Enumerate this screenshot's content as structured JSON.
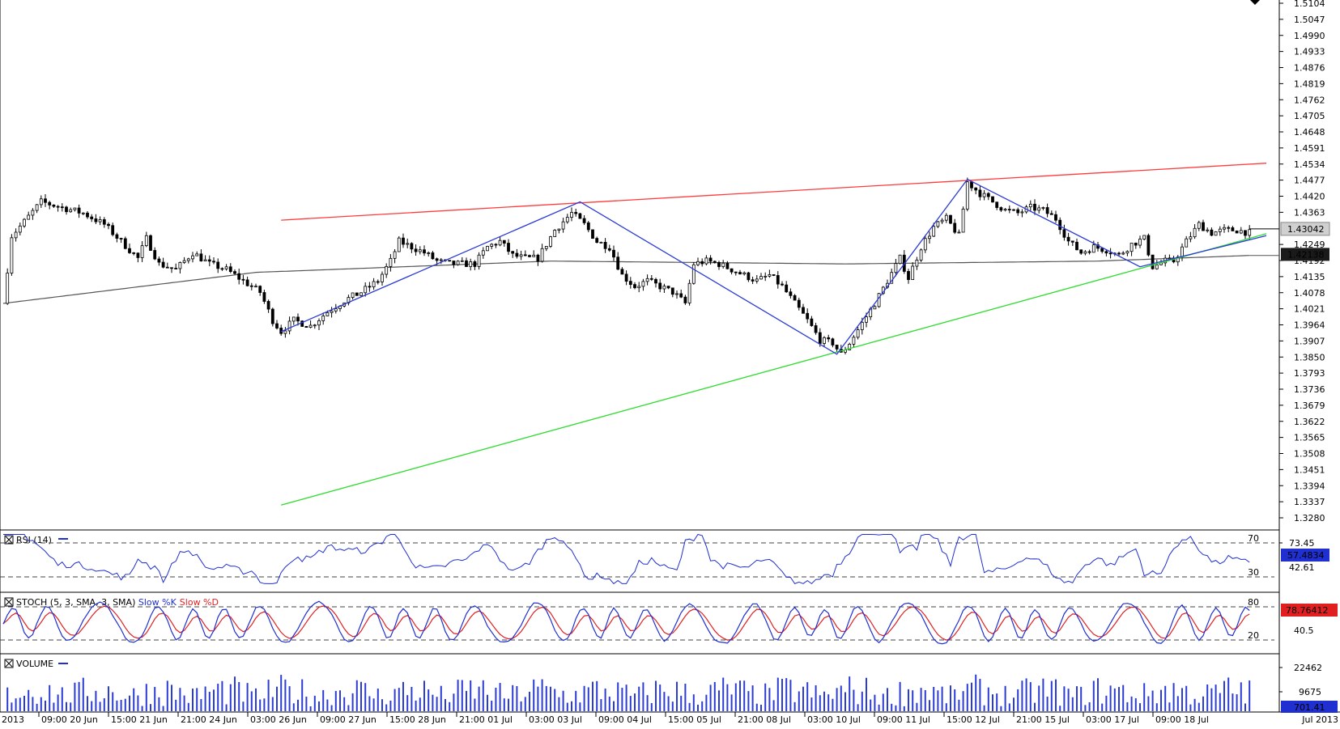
{
  "colors": {
    "background": "#ffffff",
    "candle": "#000000",
    "ma": "#555555",
    "resistance": "#ff3b3b",
    "support": "#2fdc2f",
    "zigzag": "#2b3bd6",
    "rsi": "#1f2fd0",
    "stoch_k": "#1f2fd0",
    "stoch_d": "#e02020",
    "volume": "#2b3bd6",
    "badge_blue": "#1f2fd0",
    "badge_red": "#e02020",
    "badge_dark": "#1a1a1a",
    "badge_grey": "#d0d0d0"
  },
  "price_axis": {
    "ticks": [
      "1.5104",
      "1.5047",
      "1.4990",
      "1.4933",
      "1.4876",
      "1.4819",
      "1.4762",
      "1.4705",
      "1.4648",
      "1.4591",
      "1.4534",
      "1.4477",
      "1.4420",
      "1.4363",
      "1.4249",
      "1.4192",
      "1.4135",
      "1.4078",
      "1.4021",
      "1.3964",
      "1.3907",
      "1.3850",
      "1.3793",
      "1.3736",
      "1.3679",
      "1.3622",
      "1.3565",
      "1.3508",
      "1.3451",
      "1.3394",
      "1.3337",
      "1.3280"
    ],
    "badge_last": "1.43042",
    "badge_ma": "1.42138"
  },
  "time_axis": {
    "left_label": "2013",
    "right_label": "Jul 2013",
    "ticks": [
      "09:00 20 Jun",
      "15:00 21 Jun",
      "21:00 24 Jun",
      "03:00 26 Jun",
      "09:00 27 Jun",
      "15:00 28 Jun",
      "21:00 01 Jul",
      "03:00 03 Jul",
      "09:00 04 Jul",
      "15:00 05 Jul",
      "21:00 08 Jul",
      "03:00 10 Jul",
      "09:00 11 Jul",
      "15:00 12 Jul",
      "21:00 15 Jul",
      "03:00 17 Jul",
      "09:00 18 Jul"
    ]
  },
  "rsi": {
    "title": "RSI (14)",
    "levels": [
      "70",
      "30"
    ],
    "scale": [
      "73.45",
      "42.61"
    ],
    "badge": "57.4834"
  },
  "stoch": {
    "title_prefix": "STOCH (5, 3, SMA, 3, SMA) ",
    "k_label": "Slow %K",
    "d_label": "Slow %D",
    "levels": [
      "80",
      "20"
    ],
    "scale": [
      "40.5"
    ],
    "badge": "78.76412"
  },
  "volume": {
    "title": "VOLUME",
    "scale": [
      "22462",
      "9675"
    ],
    "badge": "701.41"
  },
  "chart_data": {
    "type": "candlestick",
    "ylim": [
      1.328,
      1.5104
    ],
    "x": [
      "09:00 20 Jun",
      "15:00 21 Jun",
      "21:00 24 Jun",
      "03:00 26 Jun",
      "09:00 27 Jun",
      "15:00 28 Jun",
      "21:00 01 Jul",
      "03:00 03 Jul",
      "09:00 04 Jul",
      "15:00 05 Jul",
      "21:00 08 Jul",
      "03:00 10 Jul",
      "09:00 11 Jul",
      "15:00 12 Jul",
      "21:00 15 Jul",
      "03:00 17 Jul",
      "09:00 18 Jul"
    ],
    "price_path": [
      [
        0,
        1.404
      ],
      [
        2,
        1.428
      ],
      [
        5,
        1.433
      ],
      [
        9,
        1.44
      ],
      [
        14,
        1.438
      ],
      [
        19,
        1.436
      ],
      [
        24,
        1.432
      ],
      [
        28,
        1.426
      ],
      [
        32,
        1.42
      ],
      [
        34,
        1.427
      ],
      [
        37,
        1.418
      ],
      [
        41,
        1.416
      ],
      [
        45,
        1.422
      ],
      [
        49,
        1.418
      ],
      [
        53,
        1.416
      ],
      [
        57,
        1.412
      ],
      [
        61,
        1.408
      ],
      [
        64,
        1.398
      ],
      [
        66,
        1.394
      ],
      [
        69,
        1.398
      ],
      [
        73,
        1.396
      ],
      [
        77,
        1.401
      ],
      [
        81,
        1.405
      ],
      [
        85,
        1.408
      ],
      [
        89,
        1.412
      ],
      [
        92,
        1.419
      ],
      [
        94,
        1.426
      ],
      [
        97,
        1.424
      ],
      [
        100,
        1.422
      ],
      [
        103,
        1.419
      ],
      [
        106,
        1.418
      ],
      [
        109,
        1.418
      ],
      [
        112,
        1.418
      ],
      [
        115,
        1.424
      ],
      [
        118,
        1.426
      ],
      [
        121,
        1.421
      ],
      [
        124,
        1.42
      ],
      [
        127,
        1.42
      ],
      [
        131,
        1.43
      ],
      [
        135,
        1.436
      ],
      [
        138,
        1.432
      ],
      [
        141,
        1.426
      ],
      [
        144,
        1.424
      ],
      [
        147,
        1.414
      ],
      [
        150,
        1.41
      ],
      [
        153,
        1.412
      ],
      [
        156,
        1.41
      ],
      [
        159,
        1.408
      ],
      [
        162,
        1.404
      ],
      [
        164,
        1.418
      ],
      [
        167,
        1.419
      ],
      [
        170,
        1.418
      ],
      [
        173,
        1.416
      ],
      [
        176,
        1.414
      ],
      [
        179,
        1.412
      ],
      [
        182,
        1.414
      ],
      [
        185,
        1.41
      ],
      [
        188,
        1.404
      ],
      [
        191,
        1.398
      ],
      [
        194,
        1.391
      ],
      [
        197,
        1.39
      ],
      [
        199,
        1.386
      ],
      [
        201,
        1.39
      ],
      [
        204,
        1.397
      ],
      [
        207,
        1.404
      ],
      [
        210,
        1.412
      ],
      [
        213,
        1.42
      ],
      [
        215,
        1.413
      ],
      [
        218,
        1.424
      ],
      [
        221,
        1.431
      ],
      [
        224,
        1.434
      ],
      [
        227,
        1.428
      ],
      [
        229,
        1.447
      ],
      [
        232,
        1.443
      ],
      [
        235,
        1.44
      ],
      [
        238,
        1.437
      ],
      [
        241,
        1.436
      ],
      [
        244,
        1.438
      ],
      [
        247,
        1.437
      ],
      [
        250,
        1.434
      ],
      [
        253,
        1.426
      ],
      [
        256,
        1.422
      ],
      [
        259,
        1.424
      ],
      [
        262,
        1.423
      ],
      [
        265,
        1.421
      ],
      [
        268,
        1.425
      ],
      [
        271,
        1.427
      ],
      [
        273,
        1.417
      ],
      [
        276,
        1.419
      ],
      [
        278,
        1.419
      ],
      [
        281,
        1.426
      ],
      [
        284,
        1.432
      ],
      [
        287,
        1.429
      ],
      [
        290,
        1.43
      ],
      [
        293,
        1.43
      ],
      [
        296,
        1.429
      ]
    ],
    "moving_average_path": [
      [
        0,
        1.404
      ],
      [
        60,
        1.415
      ],
      [
        130,
        1.419
      ],
      [
        200,
        1.418
      ],
      [
        260,
        1.419
      ],
      [
        296,
        1.421
      ]
    ],
    "resistance_line": [
      [
        66,
        1.4335
      ],
      [
        300,
        1.4537
      ]
    ],
    "support_line": [
      [
        66,
        1.3325
      ],
      [
        300,
        1.4287
      ]
    ],
    "zigzag": [
      [
        66,
        1.394
      ],
      [
        137,
        1.44
      ],
      [
        198,
        1.386
      ],
      [
        229,
        1.448
      ],
      [
        270,
        1.417
      ],
      [
        300,
        1.428
      ]
    ]
  }
}
